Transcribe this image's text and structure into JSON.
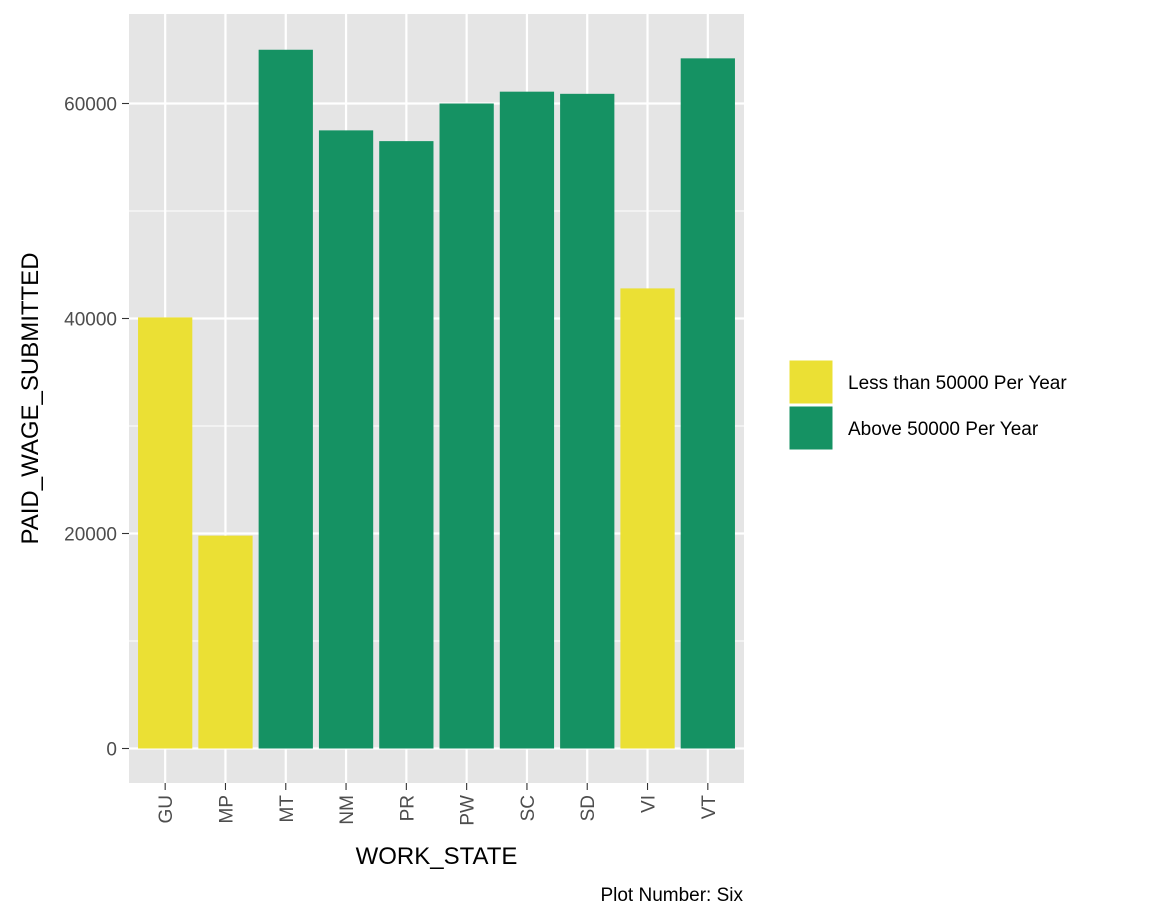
{
  "chart_data": {
    "type": "bar",
    "categories": [
      "GU",
      "MP",
      "MT",
      "NM",
      "PR",
      "PW",
      "SC",
      "SD",
      "VI",
      "VT"
    ],
    "values": [
      40100,
      19800,
      65000,
      57500,
      56500,
      60000,
      61100,
      60900,
      42800,
      64200
    ],
    "groups": [
      "less",
      "less",
      "above",
      "above",
      "above",
      "above",
      "above",
      "above",
      "less",
      "above"
    ],
    "xlabel": "WORK_STATE",
    "ylabel": "PAID_WAGE_SUBMITTED",
    "ylim": [
      -3000,
      68500
    ],
    "yticks": [
      0,
      20000,
      40000,
      60000
    ],
    "ytick_labels": [
      "0",
      "20000",
      "40000",
      "60000"
    ],
    "grid": true,
    "legend_position": "right",
    "legend": [
      {
        "key": "less",
        "label": "Less than 50000 Per Year",
        "color": "#EBE034"
      },
      {
        "key": "above",
        "label": "Above 50000 Per Year",
        "color": "#159263"
      }
    ],
    "caption": "Plot Number: Six",
    "colors": {
      "panel": "#E5E5E5",
      "grid_major": "#FFFFFF",
      "tick_text": "#4D4D4D",
      "tick_mark": "#333333"
    }
  }
}
